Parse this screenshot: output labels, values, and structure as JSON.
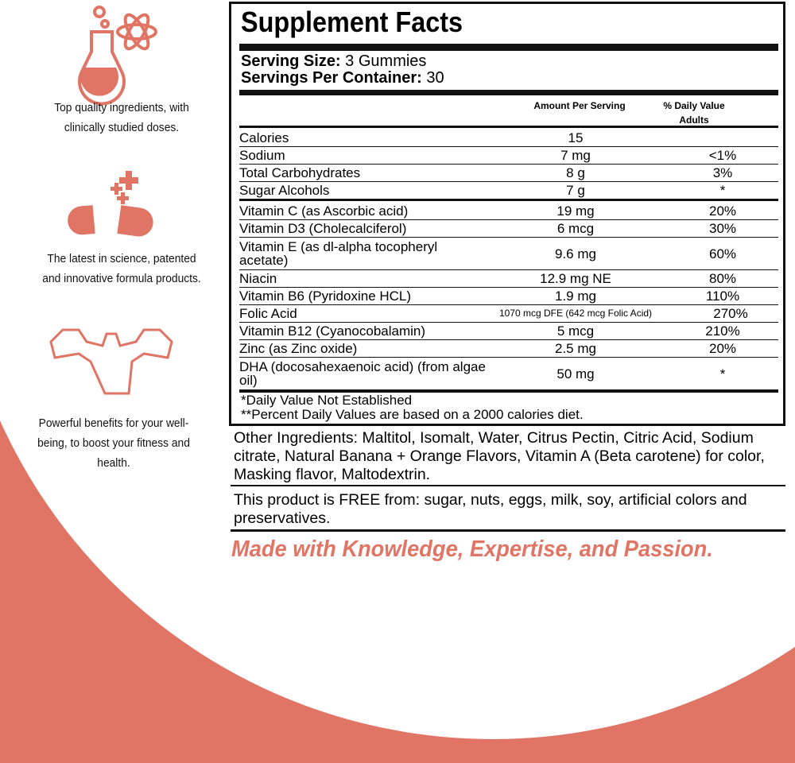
{
  "features": [
    "Top quality ingredients, with clinically studied doses.",
    "The latest in science, patented and innovative formula products.",
    "Powerful benefits for your well-being, to boost your fitness and health."
  ],
  "supplement_facts": {
    "title": "Supplement Facts",
    "serving_size": {
      "label": "Serving Size:",
      "value": "3 Gummies"
    },
    "servings_per_container": {
      "label": "Servings Per Container:",
      "value": "30"
    },
    "columns": [
      "Amount Per Serving",
      "% Daily Value Adults"
    ],
    "groups": [
      [
        {
          "name": "Calories",
          "amount": "15",
          "dv": ""
        },
        {
          "name": "Sodium",
          "amount": "7 mg",
          "dv": "<1%"
        },
        {
          "name": "Total Carbohydrates",
          "amount": "8 g",
          "dv": "3%"
        },
        {
          "name": "Sugar Alcohols",
          "amount": "7 g",
          "dv": "*"
        }
      ],
      [
        {
          "name": "Vitamin C (as Ascorbic acid)",
          "amount": "19 mg",
          "dv": "20%"
        },
        {
          "name": "Vitamin D3 (Cholecalciferol)",
          "amount": "6 mcg",
          "dv": "30%"
        },
        {
          "name": "Vitamin E (as dl-alpha tocopheryl acetate)",
          "amount": "9.6 mg",
          "dv": "60%"
        },
        {
          "name": "Niacin",
          "amount": "12.9 mg NE",
          "dv": "80%"
        },
        {
          "name": "Vitamin B6 (Pyridoxine HCL)",
          "amount": "1.9 mg",
          "dv": "110%"
        },
        {
          "name": "Folic Acid",
          "amount": "1070 mcg DFE (642 mcg Folic Acid)",
          "dv": "270%"
        },
        {
          "name": "Vitamin B12 (Cyanocobalamin)",
          "amount": "5 mcg",
          "dv": "210%"
        },
        {
          "name": "Zinc (as Zinc oxide)",
          "amount": "2.5 mg",
          "dv": "20%"
        },
        {
          "name": "DHA (docosahexaenoic acid) (from algae oil)",
          "amount": "50 mg",
          "dv": "*"
        }
      ]
    ],
    "footnotes": [
      "*Daily Value Not Established",
      "**Percent Daily Values are based on a 2000 calories diet."
    ]
  },
  "other_ingredients": "Other Ingredients: Maltitol, Isomalt, Water, Citrus Pectin, Citric Acid, Sodium citrate, Natural Banana + Orange Flavors, Vitamin A (Beta carotene) for color, Masking flavor, Maltodextrin.",
  "free_from": "This product is FREE from: sugar, nuts, eggs, milk, soy, artificial colors and preservatives.",
  "tagline": "Made with Knowledge, Expertise, and Passion."
}
